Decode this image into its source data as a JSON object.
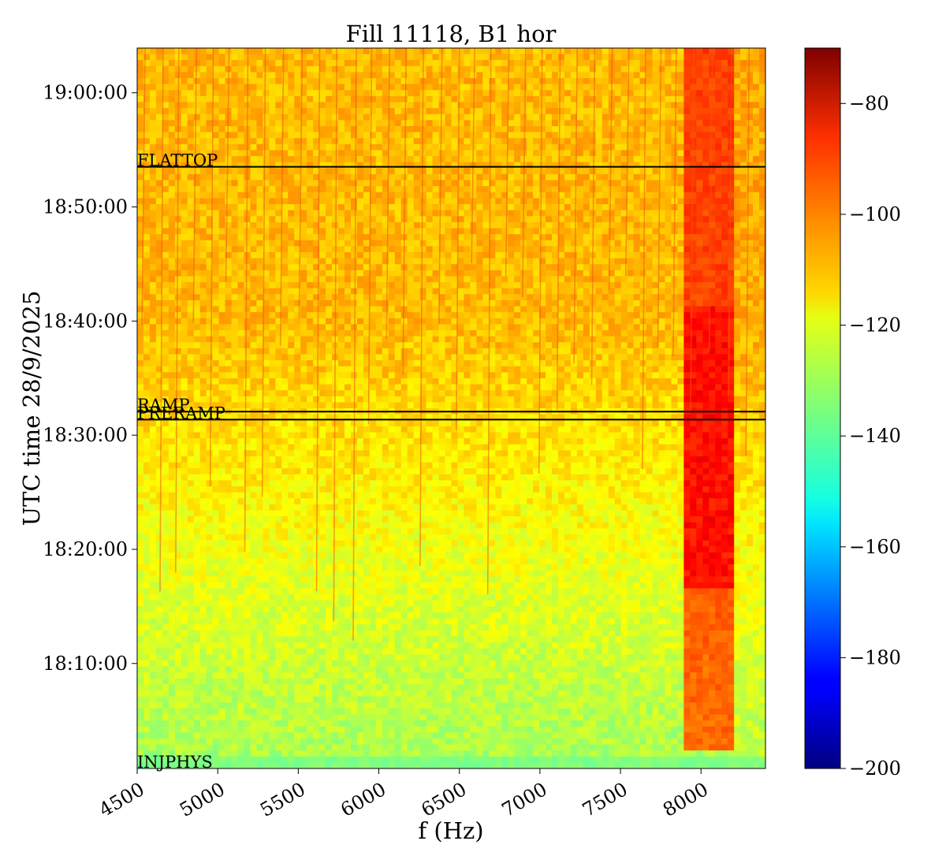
{
  "chart_data": {
    "type": "heatmap",
    "title": "Fill 11118, B1 hor",
    "xlabel": "f (Hz)",
    "ylabel": "UTC time 28/9/2025",
    "x_range": [
      4500,
      8400
    ],
    "x_ticks": [
      4500,
      5000,
      5500,
      6000,
      6500,
      7000,
      7500,
      8000
    ],
    "x_tick_labels": [
      "4500",
      "5000",
      "5500",
      "6000",
      "6500",
      "7000",
      "7500",
      "8000"
    ],
    "y_range": [
      "18:00:48",
      "19:03:55"
    ],
    "y_ticks": [
      "18:10:00",
      "18:20:00",
      "18:30:00",
      "18:40:00",
      "18:50:00",
      "19:00:00"
    ],
    "y_tick_labels": [
      "18:10:00",
      "18:20:00",
      "18:30:00",
      "18:40:00",
      "18:50:00",
      "19:00:00"
    ],
    "colorbar": {
      "colormap": "jet",
      "range": [
        -200,
        -70
      ],
      "ticks": [
        -200,
        -180,
        -160,
        -140,
        -120,
        -100,
        -80
      ],
      "tick_labels": [
        "−200",
        "−180",
        "−160",
        "−140",
        "−120",
        "−100",
        "−80"
      ]
    },
    "events": [
      {
        "label": "INJPHYS",
        "time": "18:00:48"
      },
      {
        "label": "PRERAMP",
        "time": "18:31:22"
      },
      {
        "label": "RAMP",
        "time": "18:32:04"
      },
      {
        "label": "FLATTOP",
        "time": "18:53:31"
      }
    ],
    "value_description": {
      "background_level_start": -130,
      "background_level_end": -110,
      "hot_band_f_range": [
        7900,
        8200
      ],
      "hot_band_level": -88
    }
  }
}
